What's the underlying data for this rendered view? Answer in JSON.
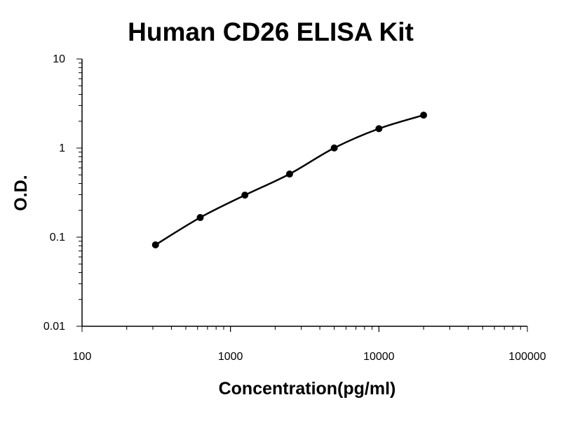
{
  "chart_data": {
    "type": "scatter",
    "title": "Human CD26 ELISA Kit",
    "xlabel": "Concentration(pg/ml)",
    "ylabel": "O.D.",
    "x_scale": "log",
    "y_scale": "log",
    "xlim": [
      100,
      100000
    ],
    "ylim": [
      0.01,
      10
    ],
    "x_tick_labels": [
      "100",
      "1000",
      "10000",
      "100000"
    ],
    "y_tick_labels": [
      "0.01",
      "0.1",
      "1",
      "10"
    ],
    "grid": false,
    "legend": "none",
    "series": [
      {
        "x": [
          312.5,
          625,
          1250,
          2500,
          5000,
          10000,
          20000
        ],
        "y": [
          0.082,
          0.166,
          0.296,
          0.511,
          1.002,
          1.65,
          2.34
        ],
        "color": "#000000",
        "fit_line": true
      }
    ]
  }
}
